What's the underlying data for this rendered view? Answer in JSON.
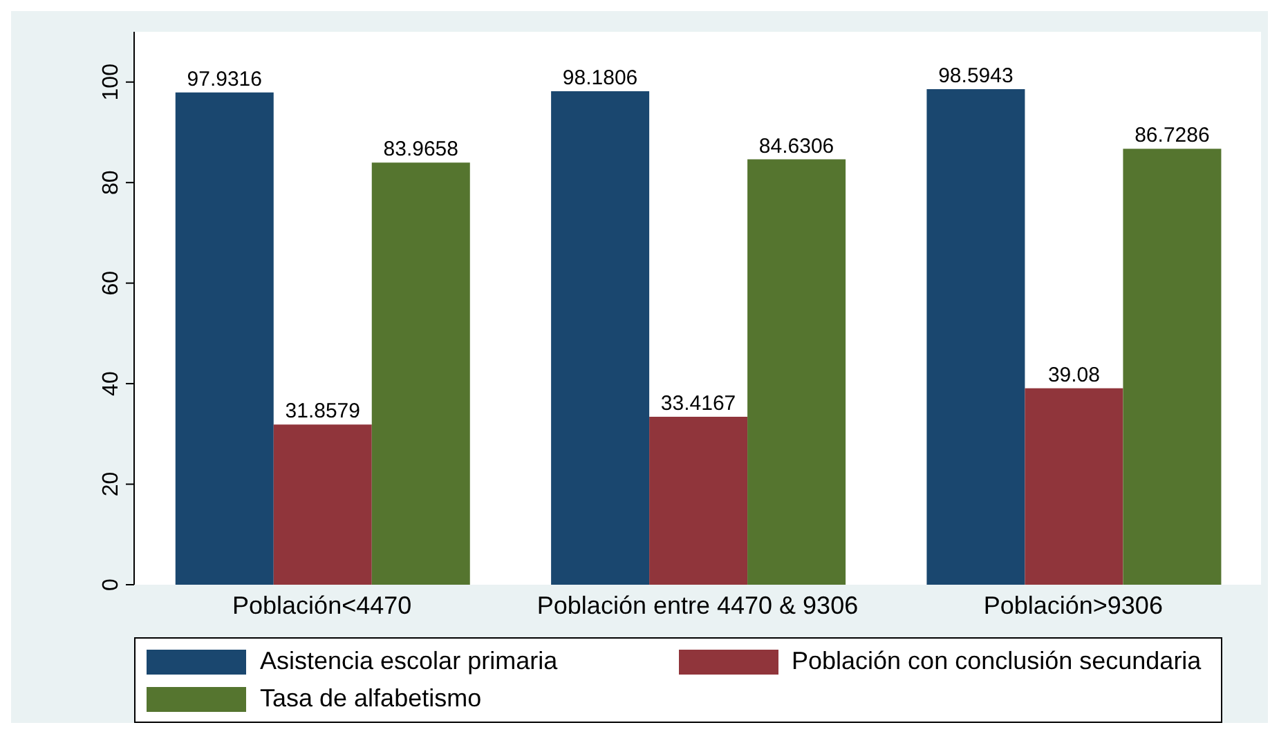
{
  "chart_data": {
    "type": "bar",
    "categories": [
      "Población<4470",
      "Población entre 4470 & 9306",
      "Población>9306"
    ],
    "series": [
      {
        "name": "Asistencia escolar primaria",
        "color": "#1a476f",
        "values": [
          97.9316,
          98.1806,
          98.5943
        ]
      },
      {
        "name": "Población con conclusión secundaria",
        "color": "#90353b",
        "values": [
          31.8579,
          33.4167,
          39.08
        ]
      },
      {
        "name": "Tasa de alfabetismo",
        "color": "#55752f",
        "values": [
          83.9658,
          84.6306,
          86.7286
        ]
      }
    ],
    "ylim": [
      0,
      110
    ],
    "yticks": [
      0,
      20,
      40,
      60,
      80,
      100
    ],
    "grid": false,
    "legend": "bottom",
    "data_labels": true
  }
}
